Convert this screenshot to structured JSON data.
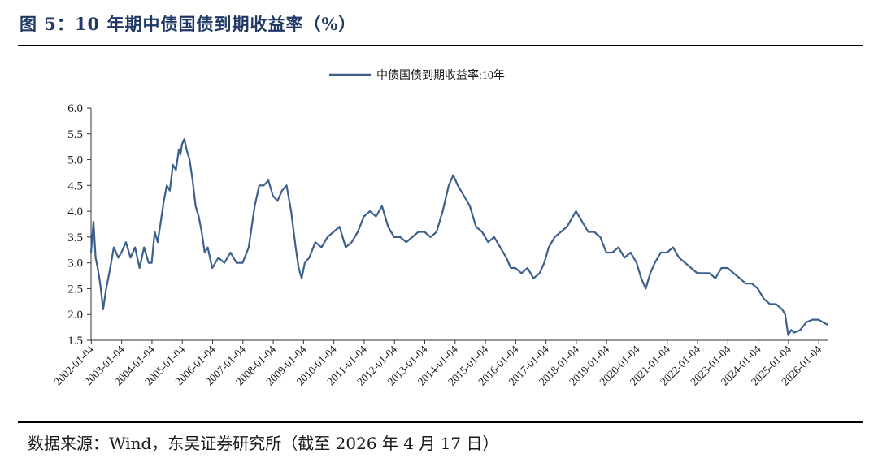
{
  "figure": {
    "title": "图 5：10 年期中债国债到期收益率（%）",
    "source": "数据来源：Wind，东吴证券研究所（截至 2026 年 4 月 17 日）"
  },
  "chart_data": {
    "type": "line",
    "title": "图 5：10 年期中债国债到期收益率（%）",
    "xlabel": "",
    "ylabel": "",
    "ylim": [
      1.5,
      6.0
    ],
    "yticks": [
      "1.5",
      "2.0",
      "2.5",
      "3.0",
      "3.5",
      "4.0",
      "4.5",
      "5.0",
      "5.5",
      "6.0"
    ],
    "xlim": [
      "2002-01-04",
      "2026-04-17"
    ],
    "xticks": [
      "2002-01-04",
      "2003-01-04",
      "2004-01-04",
      "2005-01-04",
      "2006-01-04",
      "2007-01-04",
      "2008-01-04",
      "2009-01-04",
      "2010-01-04",
      "2011-01-04",
      "2012-01-04",
      "2013-01-04",
      "2014-01-04",
      "2015-01-04",
      "2016-01-04",
      "2017-01-04",
      "2018-01-04",
      "2019-01-04",
      "2020-01-04",
      "2021-01-04",
      "2022-01-04",
      "2023-01-04",
      "2024-01-04",
      "2025-01-04",
      "2026-01-04"
    ],
    "grid": false,
    "legend_position": "top-center",
    "series": [
      {
        "name": "中债国债到期收益率:10年",
        "color": "#3c5f8c",
        "x": [
          2002.0,
          2002.08,
          2002.15,
          2002.22,
          2002.3,
          2002.4,
          2002.5,
          2002.6,
          2002.75,
          2002.9,
          2003.0,
          2003.15,
          2003.3,
          2003.45,
          2003.6,
          2003.75,
          2003.9,
          2004.0,
          2004.1,
          2004.2,
          2004.3,
          2004.4,
          2004.5,
          2004.6,
          2004.7,
          2004.8,
          2004.9,
          2004.95,
          2005.0,
          2005.08,
          2005.15,
          2005.25,
          2005.35,
          2005.45,
          2005.55,
          2005.65,
          2005.75,
          2005.85,
          2006.0,
          2006.2,
          2006.4,
          2006.6,
          2006.8,
          2007.0,
          2007.2,
          2007.4,
          2007.55,
          2007.7,
          2007.85,
          2008.0,
          2008.15,
          2008.3,
          2008.45,
          2008.6,
          2008.75,
          2008.85,
          2008.95,
          2009.05,
          2009.2,
          2009.4,
          2009.6,
          2009.8,
          2010.0,
          2010.2,
          2010.4,
          2010.6,
          2010.8,
          2011.0,
          2011.2,
          2011.4,
          2011.6,
          2011.8,
          2012.0,
          2012.2,
          2012.4,
          2012.6,
          2012.8,
          2013.0,
          2013.2,
          2013.4,
          2013.6,
          2013.8,
          2013.95,
          2014.1,
          2014.3,
          2014.5,
          2014.7,
          2014.9,
          2015.1,
          2015.3,
          2015.5,
          2015.7,
          2015.85,
          2016.0,
          2016.2,
          2016.4,
          2016.6,
          2016.8,
          2016.95,
          2017.1,
          2017.3,
          2017.5,
          2017.7,
          2017.9,
          2018.0,
          2018.2,
          2018.4,
          2018.6,
          2018.8,
          2019.0,
          2019.2,
          2019.4,
          2019.6,
          2019.8,
          2020.0,
          2020.15,
          2020.3,
          2020.45,
          2020.6,
          2020.8,
          2021.0,
          2021.2,
          2021.4,
          2021.6,
          2021.8,
          2022.0,
          2022.2,
          2022.4,
          2022.6,
          2022.8,
          2023.0,
          2023.2,
          2023.4,
          2023.6,
          2023.8,
          2024.0,
          2024.2,
          2024.4,
          2024.6,
          2024.8,
          2024.9,
          2025.0,
          2025.1,
          2025.2,
          2025.4,
          2025.6,
          2025.8,
          2026.0,
          2026.15,
          2026.3
        ],
        "values": [
          3.2,
          3.8,
          3.1,
          2.9,
          2.6,
          2.1,
          2.5,
          2.8,
          3.3,
          3.1,
          3.2,
          3.4,
          3.1,
          3.3,
          2.9,
          3.3,
          3.0,
          3.0,
          3.6,
          3.4,
          3.8,
          4.2,
          4.5,
          4.4,
          4.9,
          4.8,
          5.2,
          5.1,
          5.3,
          5.4,
          5.2,
          5.0,
          4.6,
          4.1,
          3.9,
          3.6,
          3.2,
          3.3,
          2.9,
          3.1,
          3.0,
          3.2,
          3.0,
          3.0,
          3.3,
          4.1,
          4.5,
          4.5,
          4.6,
          4.3,
          4.2,
          4.4,
          4.5,
          4.0,
          3.3,
          2.9,
          2.7,
          3.0,
          3.1,
          3.4,
          3.3,
          3.5,
          3.6,
          3.7,
          3.3,
          3.4,
          3.6,
          3.9,
          4.0,
          3.9,
          4.1,
          3.7,
          3.5,
          3.5,
          3.4,
          3.5,
          3.6,
          3.6,
          3.5,
          3.6,
          4.0,
          4.5,
          4.7,
          4.5,
          4.3,
          4.1,
          3.7,
          3.6,
          3.4,
          3.5,
          3.3,
          3.1,
          2.9,
          2.9,
          2.8,
          2.9,
          2.7,
          2.8,
          3.0,
          3.3,
          3.5,
          3.6,
          3.7,
          3.9,
          4.0,
          3.8,
          3.6,
          3.6,
          3.5,
          3.2,
          3.2,
          3.3,
          3.1,
          3.2,
          3.0,
          2.7,
          2.5,
          2.8,
          3.0,
          3.2,
          3.2,
          3.3,
          3.1,
          3.0,
          2.9,
          2.8,
          2.8,
          2.8,
          2.7,
          2.9,
          2.9,
          2.8,
          2.7,
          2.6,
          2.6,
          2.5,
          2.3,
          2.2,
          2.2,
          2.1,
          2.0,
          1.6,
          1.7,
          1.65,
          1.7,
          1.85,
          1.9,
          1.9,
          1.85,
          1.8
        ]
      }
    ]
  }
}
